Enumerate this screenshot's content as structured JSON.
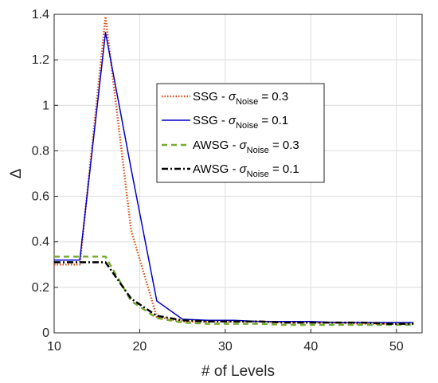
{
  "chart_data": {
    "type": "line",
    "xlabel": "# of Levels",
    "ylabel": "Δ",
    "xlim": [
      10,
      53
    ],
    "ylim": [
      0,
      1.4
    ],
    "xticks": [
      10,
      20,
      30,
      40,
      50
    ],
    "yticks": [
      0,
      0.2,
      0.4,
      0.6,
      0.8,
      1,
      1.2,
      1.4
    ],
    "xtick_labels": [
      "10",
      "20",
      "30",
      "40",
      "50"
    ],
    "ytick_labels": [
      "0",
      "0.2",
      "0.4",
      "0.6",
      "0.8",
      "1",
      "1.2",
      "1.4"
    ],
    "grid": true,
    "legend_position": "center-right",
    "series": [
      {
        "name_main": "SSG - ",
        "name_sigma": "σ",
        "name_sub": "Noise",
        "name_tail": " = 0.3",
        "color": "#d95319",
        "dash": "dotted",
        "x": [
          10,
          13,
          16,
          19,
          22,
          25,
          28,
          31,
          34,
          37,
          40,
          43,
          46,
          49,
          52
        ],
        "values": [
          0.3,
          0.3,
          1.39,
          0.45,
          0.07,
          0.05,
          0.05,
          0.05,
          0.05,
          0.045,
          0.045,
          0.045,
          0.04,
          0.04,
          0.04
        ]
      },
      {
        "name_main": "SSG - ",
        "name_sigma": "σ",
        "name_sub": "Noise",
        "name_tail": " = 0.1",
        "color": "#0000cc",
        "dash": "solid",
        "x": [
          10,
          13,
          16,
          19,
          22,
          25,
          28,
          31,
          34,
          37,
          40,
          43,
          46,
          49,
          52
        ],
        "values": [
          0.32,
          0.32,
          1.32,
          0.72,
          0.14,
          0.06,
          0.055,
          0.055,
          0.05,
          0.05,
          0.05,
          0.045,
          0.045,
          0.045,
          0.045
        ]
      },
      {
        "name_main": "AWSG - ",
        "name_sigma": "σ",
        "name_sub": "Noise",
        "name_tail": " = 0.3",
        "color": "#77ac30",
        "dash": "dashed",
        "x": [
          10,
          13,
          16,
          19,
          22,
          25,
          28,
          31,
          34,
          37,
          40,
          43,
          46,
          49,
          52
        ],
        "values": [
          0.335,
          0.335,
          0.335,
          0.14,
          0.065,
          0.045,
          0.04,
          0.04,
          0.04,
          0.035,
          0.035,
          0.035,
          0.035,
          0.035,
          0.035
        ]
      },
      {
        "name_main": "AWSG - ",
        "name_sigma": "σ",
        "name_sub": "Noise",
        "name_tail": " = 0.1",
        "color": "#000000",
        "dash": "dashdot",
        "x": [
          10,
          13,
          16,
          19,
          22,
          25,
          28,
          31,
          34,
          37,
          40,
          43,
          46,
          49,
          52
        ],
        "values": [
          0.31,
          0.31,
          0.31,
          0.15,
          0.075,
          0.055,
          0.05,
          0.05,
          0.05,
          0.045,
          0.045,
          0.045,
          0.045,
          0.04,
          0.04
        ]
      }
    ]
  }
}
